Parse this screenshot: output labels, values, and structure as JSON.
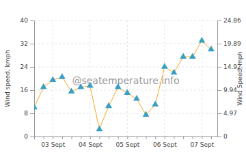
{
  "chart_data": {
    "type": "line",
    "ylabel": "Wind speed, kmph",
    "y2label": "Wind Speed, mph",
    "annotations": [
      "@seatemperature.info"
    ],
    "categories": [
      null,
      null,
      "03 Sept",
      null,
      null,
      null,
      "04 Sept",
      null,
      null,
      null,
      "05 Sept",
      null,
      null,
      null,
      "06 Sept",
      null,
      null,
      null,
      "07 Sept",
      null
    ],
    "series": [
      {
        "color": "#f5a623",
        "marker": "triangle",
        "values": [
          10,
          17,
          19.5,
          20.5,
          15.5,
          17,
          17.5,
          2.5,
          10.5,
          17,
          15,
          13,
          7.5,
          11,
          24,
          22,
          27.5,
          27.5,
          33,
          30
        ]
      }
    ],
    "ylim": [
      0,
      40
    ],
    "yticks": [
      0,
      8,
      16,
      24,
      32,
      40
    ],
    "y2lim": [
      0,
      24.86
    ],
    "y2ticks": [
      0,
      4.97,
      9.94,
      14.92,
      19.89,
      24.86
    ],
    "grid": true
  }
}
